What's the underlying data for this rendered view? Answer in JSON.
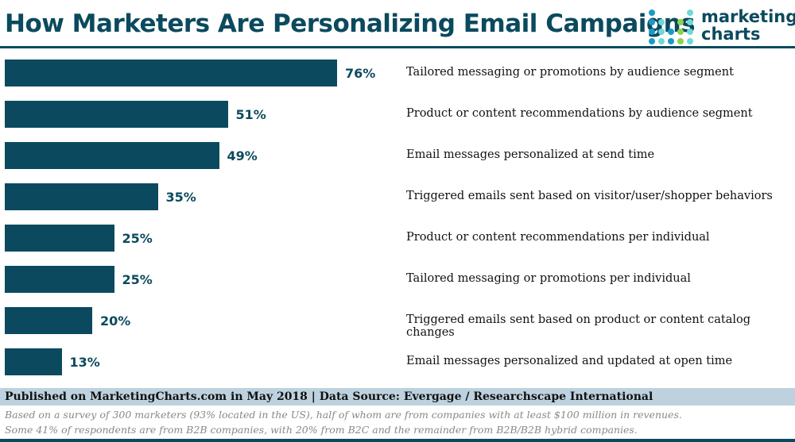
{
  "title": "How Marketers Are Personalizing Email Campaigns",
  "logo": {
    "line1": "marketing",
    "line2": "charts"
  },
  "colors": {
    "bar": "#0b4a5e",
    "footer_band": "#bdd2de"
  },
  "chart_data": {
    "type": "bar",
    "orientation": "horizontal",
    "title": "How Marketers Are Personalizing Email Campaigns",
    "categories": [
      "Tailored messaging or promotions by audience segment",
      "Product or content recommendations by audience segment",
      "Email messages personalized at send time",
      "Triggered emails sent based on visitor/user/shopper behaviors",
      "Product or content recommendations per individual",
      "Tailored messaging or promotions per individual",
      "Triggered emails sent based on product or content catalog changes",
      "Email messages personalized and updated at open time"
    ],
    "values": [
      76,
      51,
      49,
      35,
      25,
      25,
      20,
      13
    ],
    "labels": [
      "76%",
      "51%",
      "49%",
      "35%",
      "25%",
      "25%",
      "20%",
      "13%"
    ],
    "unit": "%"
  },
  "footer": {
    "published": "Published on MarketingCharts.com in May 2018 | Data Source: Evergage / Researchscape International",
    "note1": "Based on a survey of 300 marketers (93% located in the US), half of whom are from companies with at least $100 million in revenues.",
    "note2": "Some 41% of respondents are from B2B companies, with 20% from B2C and the remainder from B2B/B2B hybrid companies."
  }
}
